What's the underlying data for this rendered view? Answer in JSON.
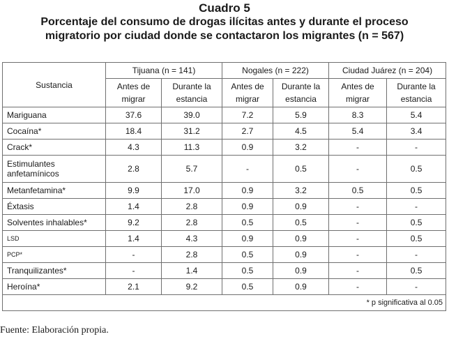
{
  "title": "Cuadro 5",
  "subtitle_line1": "Porcentaje del consumo de drogas ilícitas antes y durante el proceso",
  "subtitle_line2": "migratorio por ciudad donde se contactaron los migrantes (n = 567)",
  "header": {
    "substance": "Sustancia",
    "cities": [
      "Tijuana (n = 141)",
      "Nogales (n = 222)",
      "Ciudad Juárez (n = 204)"
    ],
    "before_line1": "Antes de",
    "before_line2": "migrar",
    "during_line1": "Durante la",
    "during_line2": "estancia"
  },
  "rows": [
    {
      "name": "Mariguana",
      "values": [
        "37.6",
        "39.0",
        "7.2",
        "5.9",
        "8.3",
        "5.4"
      ]
    },
    {
      "name": "Cocaína*",
      "values": [
        "18.4",
        "31.2",
        "2.7",
        "4.5",
        "5.4",
        "3.4"
      ]
    },
    {
      "name": "Crack*",
      "values": [
        "4.3",
        "11.3",
        "0.9",
        "3.2",
        "-",
        "-"
      ]
    },
    {
      "name_line1": "Estimulantes",
      "name_line2": "anfetamínicos",
      "values": [
        "2.8",
        "5.7",
        "-",
        "0.5",
        "-",
        "0.5"
      ]
    },
    {
      "name": "Metanfetamina*",
      "values": [
        "9.9",
        "17.0",
        "0.9",
        "3.2",
        "0.5",
        "0.5"
      ]
    },
    {
      "name": "Éxtasis",
      "values": [
        "1.4",
        "2.8",
        "0.9",
        "0.9",
        "-",
        "-"
      ]
    },
    {
      "name": "Solventes inhalables*",
      "values": [
        "9.2",
        "2.8",
        "0.5",
        "0.5",
        "-",
        "0.5"
      ]
    },
    {
      "name": "LSD",
      "values": [
        "1.4",
        "4.3",
        "0.9",
        "0.9",
        "-",
        "0.5"
      ]
    },
    {
      "name": "PCP*",
      "values": [
        "-",
        "2.8",
        "0.5",
        "0.9",
        "-",
        "-"
      ]
    },
    {
      "name": "Tranquilizantes*",
      "values": [
        "-",
        "1.4",
        "0.5",
        "0.9",
        "-",
        "0.5"
      ]
    },
    {
      "name": "Heroína*",
      "values": [
        "2.1",
        "9.2",
        "0.5",
        "0.9",
        "-",
        "-"
      ]
    }
  ],
  "footnote": "* p significativa al 0.05",
  "source": "Fuente: Elaboración propia."
}
